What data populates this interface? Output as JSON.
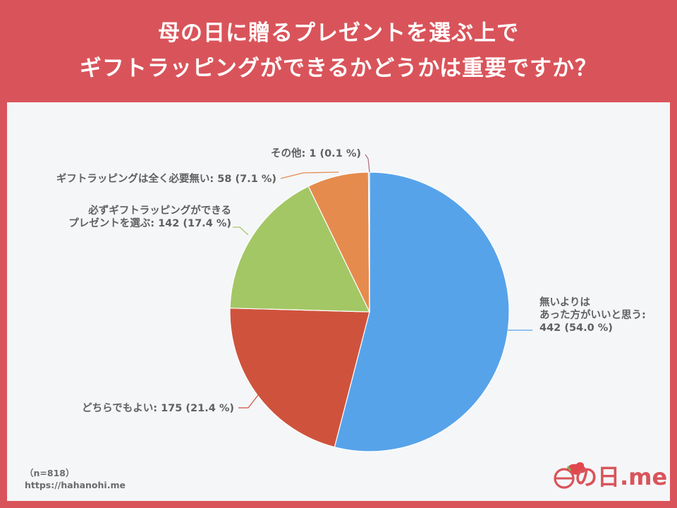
{
  "title": {
    "line1": "母の日に贈るプレゼントを選ぶ上で",
    "line2": "ギフトラッピングができるかどうかは重要ですか？"
  },
  "chart_data": {
    "type": "pie",
    "title": "母の日に贈るプレゼントを選ぶ上でギフトラッピングができるかどうかは重要ですか？",
    "n": 818,
    "slices": [
      {
        "label": "無いよりはあった方がいいと思う",
        "label_lines": [
          "無いよりは",
          "あった方がいいと思う:",
          "442 (54.0 %)"
        ],
        "value": 442,
        "percent": 54.0,
        "color": "#57a3ea"
      },
      {
        "label": "どちらでもよい",
        "label_lines": [
          "どちらでもよい: 175 (21.4 %)"
        ],
        "value": 175,
        "percent": 21.4,
        "color": "#cf533c"
      },
      {
        "label": "必ずギフトラッピングができるプレゼントを選ぶ",
        "label_lines": [
          "必ずギフトラッピングができる",
          "プレゼントを選ぶ: 142 (17.4 %)"
        ],
        "value": 142,
        "percent": 17.4,
        "color": "#a3c765"
      },
      {
        "label": "ギフトラッピングは全く必要無い",
        "label_lines": [
          "ギフトラッピングは全く必要無い: 58 (7.1 %)"
        ],
        "value": 58,
        "percent": 7.1,
        "color": "#e58b4e"
      },
      {
        "label": "その他",
        "label_lines": [
          "その他: 1 (0.1 %)"
        ],
        "value": 1,
        "percent": 0.1,
        "color": "#b06a7a"
      }
    ]
  },
  "footer": {
    "sample": "（n=818）",
    "url": "https://hahanohi.me"
  },
  "logo": {
    "text": "の日.me",
    "flower_color": "#e0484e"
  }
}
